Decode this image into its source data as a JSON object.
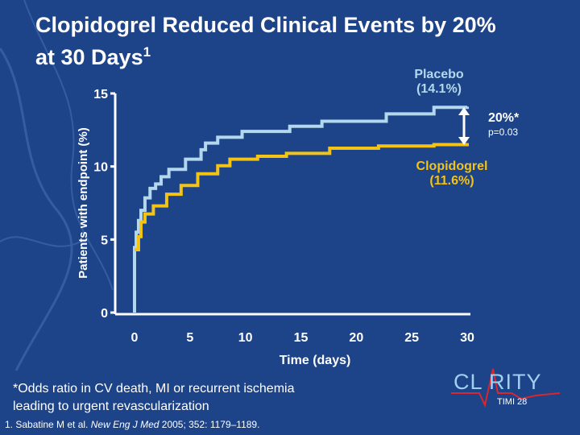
{
  "title": {
    "text": "Clopidogrel Reduced Clinical Events by 20% at 30 Days",
    "line1": "Clopidogrel Reduced Clinical Events by 20%",
    "line2": "at 30 Days",
    "superscript": "1"
  },
  "chart_data": {
    "type": "line",
    "xlabel": "Time (days)",
    "ylabel": "Patients with endpoint (%)",
    "xlim": [
      0,
      30
    ],
    "ylim": [
      0,
      15
    ],
    "xticks": [
      "0",
      "5",
      "10",
      "15",
      "20",
      "25",
      "30"
    ],
    "yticks": [
      "0",
      "5",
      "10",
      "15"
    ],
    "grid": false,
    "series": [
      {
        "name": "Placebo",
        "end_label": "(14.1%)",
        "color": "#b3d8ee",
        "x": [
          0,
          0,
          0.15,
          0.36,
          0.58,
          0.94,
          1.4,
          1.9,
          2.4,
          3.1,
          4.6,
          6.0,
          6.4,
          7.5,
          9.7,
          14.0,
          16.9,
          22.7,
          27,
          30
        ],
        "y": [
          0,
          4.45,
          5.5,
          6.3,
          7.0,
          7.85,
          8.5,
          8.8,
          9.3,
          9.8,
          10.5,
          11.15,
          11.6,
          12.0,
          12.4,
          12.75,
          13.1,
          13.6,
          14.05,
          14.1
        ]
      },
      {
        "name": "Clopidogrel",
        "end_label": "(11.6%)",
        "color": "#f3c316",
        "x": [
          0,
          0.36,
          0.58,
          0.94,
          1.7,
          2.9,
          4.2,
          5.7,
          7.5,
          8.6,
          11.1,
          13.7,
          17.6,
          22,
          27,
          30
        ],
        "y": [
          4.3,
          5.2,
          6.2,
          6.75,
          7.3,
          8.1,
          8.7,
          9.5,
          10.05,
          10.5,
          10.7,
          10.9,
          11.25,
          11.4,
          11.5,
          11.6
        ]
      }
    ],
    "annotations": {
      "difference": "20%*",
      "p_value": "p=0.03"
    }
  },
  "footnote": {
    "line1": "*Odds ratio in CV death, MI or recurrent ischemia",
    "line2": "leading to urgent revascularization"
  },
  "reference": {
    "prefix": "1. Sabatine M et al. ",
    "journal": "New Eng J Med",
    "suffix": " 2005; 352: 1179–1189."
  },
  "logo": {
    "text": "CLARITY",
    "sub": "TIMI 28"
  }
}
